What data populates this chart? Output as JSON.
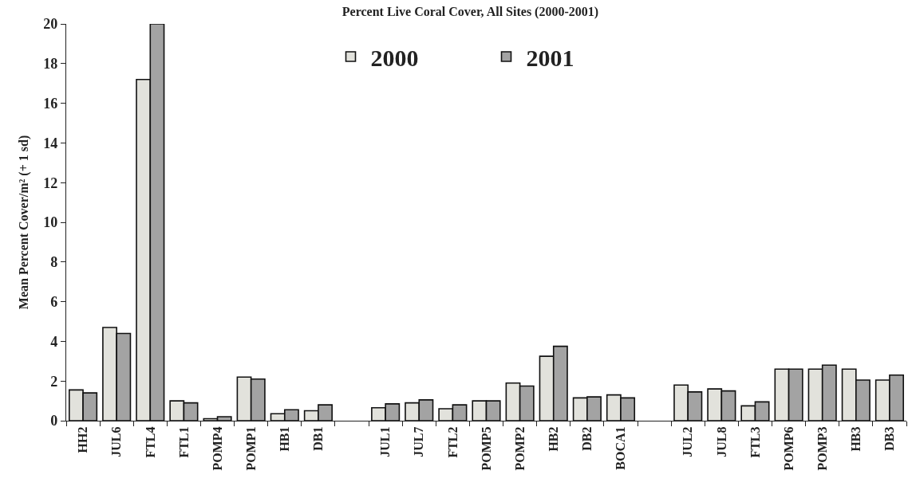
{
  "chart_data": {
    "type": "bar",
    "title": "Percent Live Coral Cover, All Sites (2000-2001)",
    "ylabel": "Mean Percent Cover/m² (+ 1 sd)",
    "categories": [
      "HH2",
      "JUL6",
      "FTL4",
      "FTL1",
      "POMP4",
      "POMP1",
      "HB1",
      "DB1",
      null,
      "JUL1",
      "JUL7",
      "FTL2",
      "POMP5",
      "POMP2",
      "HB2",
      "DB2",
      "BOCA1",
      null,
      "JUL2",
      "JUL8",
      "FTL3",
      "POMP6",
      "POMP3",
      "HB3",
      "DB3"
    ],
    "series": [
      {
        "name": "2000",
        "color": "#e2e2dc",
        "values": [
          1.55,
          4.7,
          17.2,
          1.0,
          0.1,
          2.2,
          0.35,
          0.5,
          null,
          0.65,
          0.9,
          0.6,
          1.0,
          1.9,
          3.25,
          1.15,
          1.3,
          null,
          1.8,
          1.6,
          0.75,
          2.6,
          2.6,
          2.6,
          2.05
        ]
      },
      {
        "name": "2001",
        "color": "#a3a3a3",
        "values": [
          1.4,
          4.4,
          20.0,
          0.9,
          0.2,
          2.1,
          0.55,
          0.8,
          null,
          0.85,
          1.05,
          0.8,
          1.0,
          1.75,
          3.75,
          1.2,
          1.15,
          null,
          1.45,
          1.5,
          0.95,
          2.6,
          2.8,
          2.05,
          2.3
        ]
      }
    ],
    "ylim": [
      0,
      20
    ],
    "yticks": [
      0,
      2,
      4,
      6,
      8,
      10,
      12,
      14,
      16,
      18,
      20
    ],
    "legend": "top"
  }
}
